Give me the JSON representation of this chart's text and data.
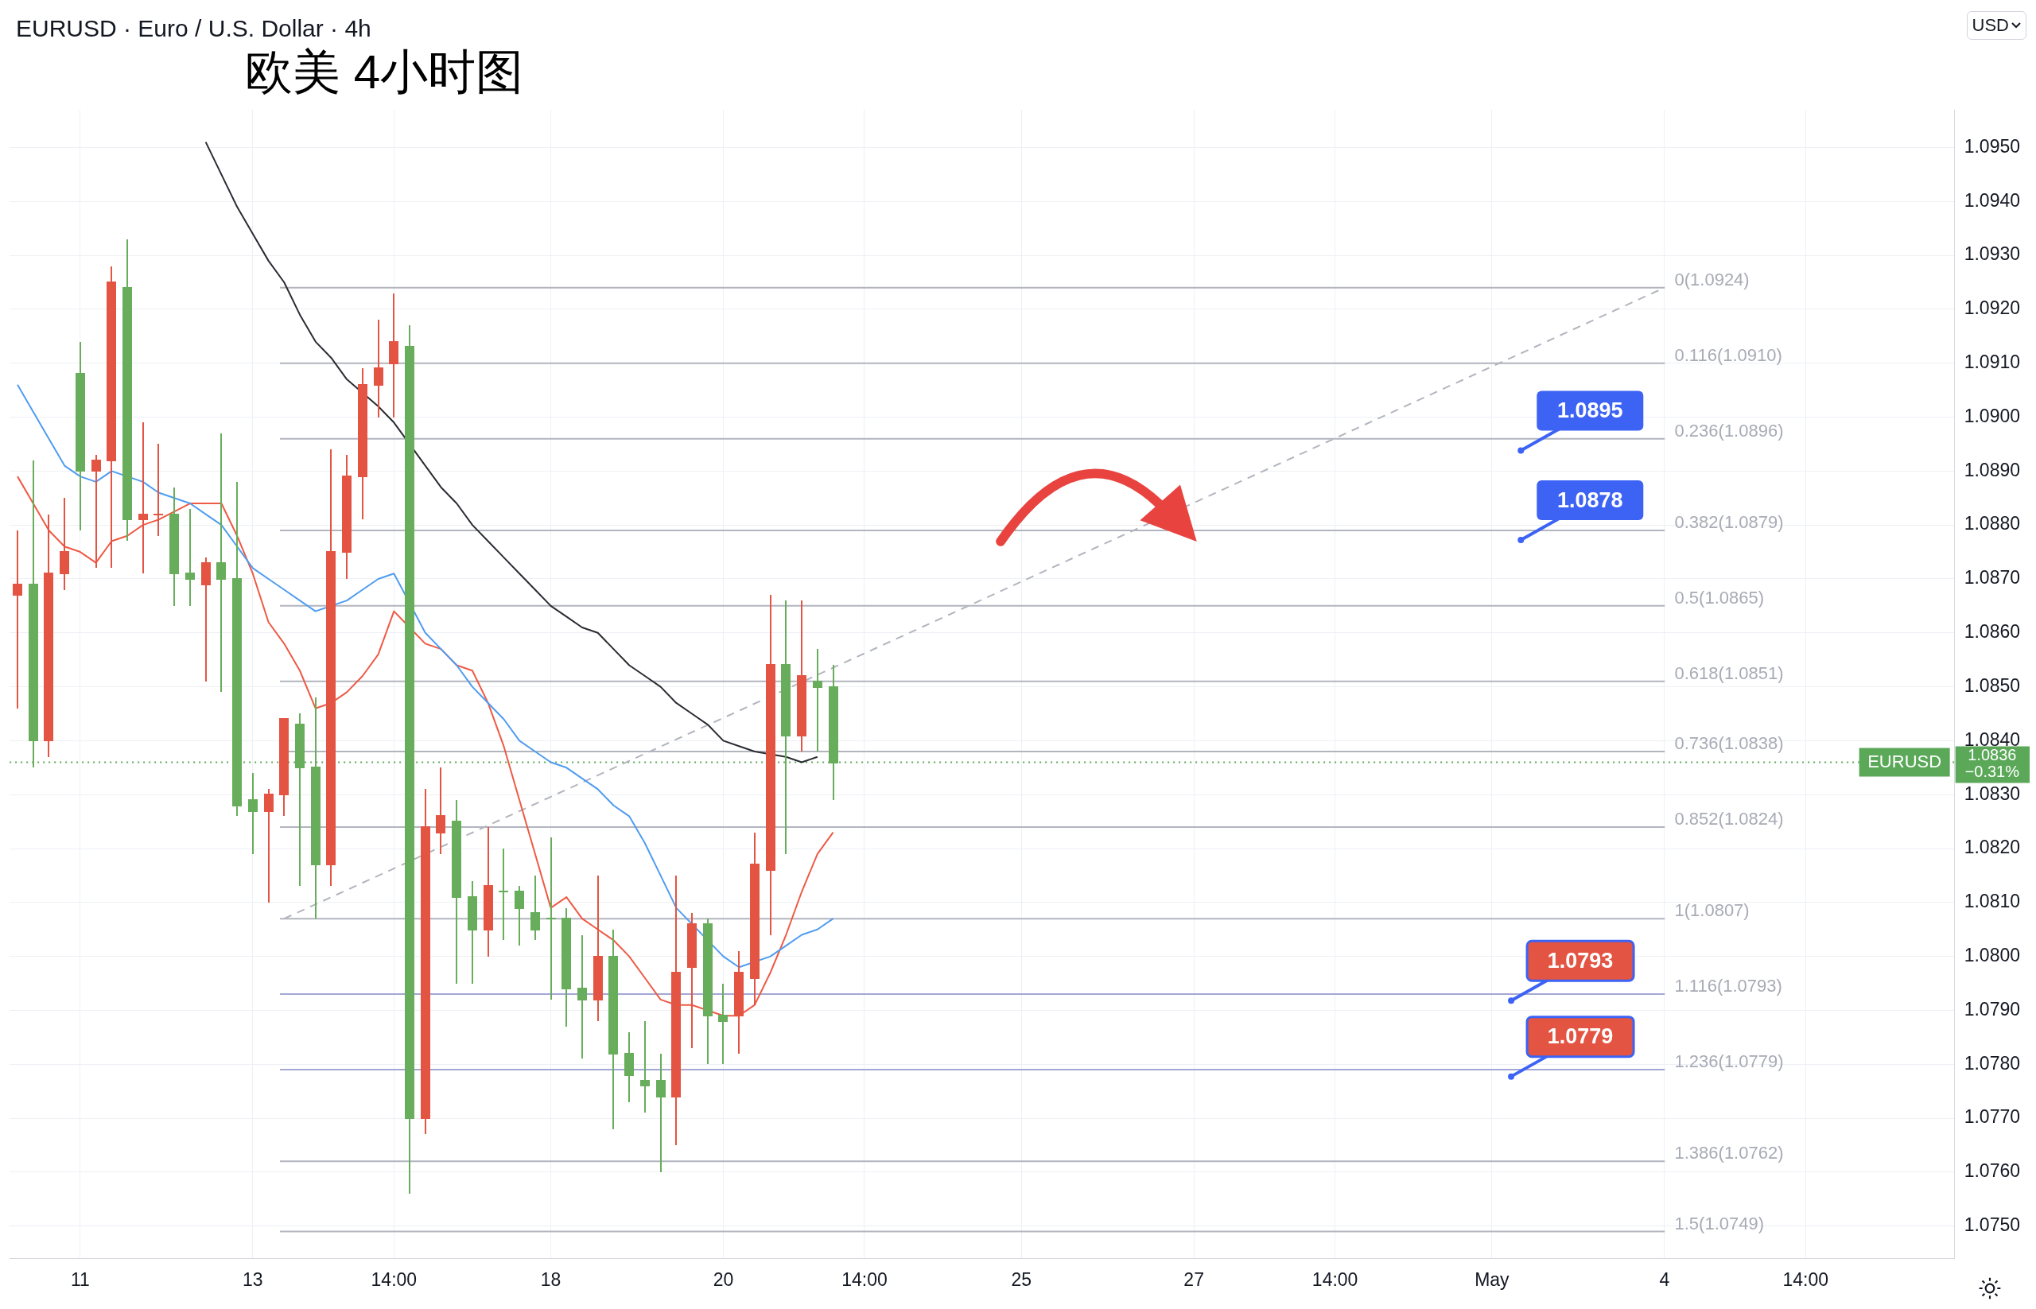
{
  "chart_data": {
    "type": "candlestick",
    "title": "EURUSD · Euro / U.S. Dollar · 4h",
    "subtitle": "欧美 4小时图",
    "categories": [
      null,
      null,
      null,
      null,
      "11",
      null,
      null,
      null,
      null,
      null,
      null,
      null,
      null,
      null,
      null,
      "13",
      null,
      null,
      null,
      null,
      null,
      null,
      null,
      null,
      "14:00",
      null,
      null,
      null,
      null,
      null,
      null,
      null,
      null,
      null,
      "18",
      null,
      null,
      null,
      null,
      null,
      null,
      null,
      null,
      null,
      null,
      "20",
      null,
      null,
      null,
      null,
      null,
      null,
      null,
      null,
      "14:00",
      null,
      null,
      null,
      null,
      null,
      null,
      null,
      null,
      null,
      "25",
      null,
      null,
      null,
      null,
      null,
      null,
      null,
      null,
      null,
      null,
      "27",
      null,
      null,
      null,
      null,
      null,
      null,
      null,
      null,
      "14:00",
      null,
      null,
      null,
      null,
      null,
      null,
      null,
      null,
      null,
      "May",
      null,
      null,
      null,
      null,
      null,
      null,
      null,
      null,
      null,
      null,
      "4",
      null,
      null,
      null,
      null,
      null,
      null,
      null,
      null,
      "14:00",
      null,
      null,
      null,
      null,
      null,
      null,
      null,
      null,
      null
    ],
    "ohlc": [
      [
        1.0869,
        1.0879,
        1.0846,
        1.0867
      ],
      [
        1.084,
        1.0892,
        1.0835,
        1.0869
      ],
      [
        1.0871,
        1.0882,
        1.0837,
        1.084
      ],
      [
        1.0875,
        1.0885,
        1.0868,
        1.0871
      ],
      [
        1.089,
        1.0914,
        1.0879,
        1.0908
      ],
      [
        1.0892,
        1.0893,
        1.0872,
        1.089
      ],
      [
        1.0925,
        1.0928,
        1.0872,
        1.0892
      ],
      [
        1.0881,
        1.0933,
        1.0877,
        1.0924
      ],
      [
        1.0882,
        1.0899,
        1.0871,
        1.0881
      ],
      [
        1.0882,
        1.0895,
        1.0878,
        1.0882
      ],
      [
        1.0871,
        1.0887,
        1.0865,
        1.0882
      ],
      [
        1.087,
        1.0883,
        1.0865,
        1.0871
      ],
      [
        1.0873,
        1.0874,
        1.0851,
        1.0869
      ],
      [
        1.087,
        1.0897,
        1.0849,
        1.0873
      ],
      [
        1.0828,
        1.0888,
        1.0826,
        1.087
      ],
      [
        1.0827,
        1.0834,
        1.0819,
        1.0829
      ],
      [
        1.083,
        1.0831,
        1.081,
        1.0827
      ],
      [
        1.0844,
        1.0844,
        1.0826,
        1.083
      ],
      [
        1.0835,
        1.0845,
        1.0813,
        1.0843
      ],
      [
        1.0817,
        1.0848,
        1.0807,
        1.0835
      ],
      [
        1.0875,
        1.0894,
        1.0813,
        1.0817
      ],
      [
        1.0889,
        1.0893,
        1.087,
        1.0875
      ],
      [
        1.0906,
        1.0909,
        1.0881,
        1.0889
      ],
      [
        1.0909,
        1.0918,
        1.09,
        1.0906
      ],
      [
        1.0914,
        1.0923,
        1.09,
        1.091
      ],
      [
        1.077,
        1.0917,
        1.0756,
        1.0913
      ],
      [
        1.0824,
        1.0831,
        1.0767,
        1.077
      ],
      [
        1.0826,
        1.0835,
        1.0819,
        1.0823
      ],
      [
        1.0811,
        1.0829,
        1.0795,
        1.0825
      ],
      [
        1.0805,
        1.0814,
        1.0795,
        1.0811
      ],
      [
        1.0813,
        1.0824,
        1.08,
        1.0805
      ],
      [
        1.0812,
        1.082,
        1.0803,
        1.0812
      ],
      [
        1.0809,
        1.0813,
        1.0802,
        1.0812
      ],
      [
        1.0805,
        1.0815,
        1.0803,
        1.0808
      ],
      [
        1.0807,
        1.0822,
        1.0792,
        1.0807
      ],
      [
        1.0794,
        1.0809,
        1.0787,
        1.0807
      ],
      [
        1.0792,
        1.0804,
        1.0781,
        1.0794
      ],
      [
        1.08,
        1.0815,
        1.0788,
        1.0792
      ],
      [
        1.0782,
        1.0805,
        1.0768,
        1.08
      ],
      [
        1.0778,
        1.0786,
        1.0773,
        1.0782
      ],
      [
        1.0776,
        1.0788,
        1.0771,
        1.0777
      ],
      [
        1.0774,
        1.0782,
        1.076,
        1.0777
      ],
      [
        1.0797,
        1.0815,
        1.0765,
        1.0774
      ],
      [
        1.0806,
        1.0808,
        1.0783,
        1.0798
      ],
      [
        1.0789,
        1.0807,
        1.078,
        1.0806
      ],
      [
        1.0788,
        1.0795,
        1.078,
        1.0789
      ],
      [
        1.0797,
        1.0801,
        1.0782,
        1.0789
      ],
      [
        1.0817,
        1.0823,
        1.0791,
        1.0796
      ],
      [
        1.0854,
        1.0867,
        1.0804,
        1.0816
      ],
      [
        1.0841,
        1.0866,
        1.0819,
        1.0854
      ],
      [
        1.0852,
        1.0866,
        1.0838,
        1.0841
      ],
      [
        1.085,
        1.0857,
        1.0838,
        1.0851
      ],
      [
        1.0836,
        1.0854,
        1.0829,
        1.085
      ],
      null,
      null,
      null,
      null,
      null,
      null,
      null,
      null,
      null,
      null,
      null,
      null,
      null,
      null,
      null,
      null,
      null,
      null,
      null,
      null,
      null,
      null,
      null,
      null,
      null,
      null,
      null,
      null,
      null,
      null,
      null,
      null,
      null,
      null,
      null,
      null,
      null,
      null,
      null,
      null,
      null,
      null,
      null,
      null,
      null,
      null,
      null,
      null,
      null,
      null,
      null,
      null,
      null,
      null,
      null,
      null,
      null,
      null,
      null,
      null,
      null,
      null,
      null,
      null,
      null,
      null,
      null,
      null,
      null,
      null,
      null
    ],
    "colors": [
      "#e35443",
      "#67ad5b",
      "#e35443",
      "#e35443",
      "#67ad5b",
      "#e35443",
      "#e35443",
      "#67ad5b",
      "#e35443",
      "#e35443",
      "#67ad5b",
      "#67ad5b",
      "#e35443",
      "#67ad5b",
      "#67ad5b",
      "#67ad5b",
      "#e35443",
      "#e35443",
      "#67ad5b",
      "#67ad5b",
      "#e35443",
      "#e35443",
      "#e35443",
      "#e35443",
      "#e35443",
      "#67ad5b",
      "#e35443",
      "#e35443",
      "#67ad5b",
      "#67ad5b",
      "#e35443",
      "#67ad5b",
      "#67ad5b",
      "#67ad5b",
      "#67ad5b",
      "#67ad5b",
      "#67ad5b",
      "#e35443",
      "#67ad5b",
      "#67ad5b",
      "#67ad5b",
      "#67ad5b",
      "#e35443",
      "#e35443",
      "#67ad5b",
      "#67ad5b",
      "#e35443",
      "#e35443",
      "#e35443",
      "#67ad5b",
      "#e35443",
      "#67ad5b",
      "#67ad5b",
      null,
      null,
      null,
      null,
      null,
      null,
      null,
      null,
      null,
      null,
      null,
      null,
      null,
      null,
      null,
      null,
      null,
      null,
      null,
      null,
      null,
      null,
      null,
      null,
      null,
      null,
      null,
      null,
      null,
      null,
      null,
      null,
      null,
      null,
      null,
      null,
      null,
      null,
      null,
      null,
      null,
      null,
      null,
      null,
      null,
      null,
      null,
      null,
      null,
      null,
      null,
      null,
      null,
      null,
      null,
      null,
      null,
      null,
      null,
      null,
      null,
      null,
      null,
      null,
      null,
      null,
      null,
      null,
      null,
      null,
      null
    ],
    "series": [
      {
        "type": "line",
        "color": "#4f9cf0",
        "values": [
          1.0906,
          1.0901,
          1.0896,
          1.0891,
          1.0889,
          1.0888,
          1.089,
          null,
          1.0888,
          1.0886,
          1.0885,
          1.0884,
          1.0882,
          1.088,
          1.0876,
          1.0872,
          1.087,
          1.0868,
          1.0866,
          1.0864,
          null,
          1.0866,
          1.0868,
          1.087,
          1.0871,
          null,
          1.086,
          1.0857,
          1.0854,
          1.085,
          1.0847,
          1.0844,
          1.084,
          1.0838,
          1.0836,
          1.0835,
          1.0833,
          1.0831,
          1.0828,
          1.0826,
          1.0821,
          1.0815,
          1.0809,
          null,
          null,
          1.08,
          1.0798,
          null,
          1.08,
          1.0802,
          1.0804,
          1.0805,
          1.0807,
          null,
          null,
          null,
          null,
          null,
          null,
          null,
          null,
          null,
          null,
          null,
          null,
          null,
          null,
          null,
          null,
          null,
          null,
          null,
          null,
          null,
          null,
          null,
          null,
          null,
          null,
          null,
          null,
          null,
          null,
          null,
          null,
          null,
          null,
          null,
          null,
          null,
          null,
          null,
          null,
          null,
          null,
          null,
          null,
          null,
          null,
          null,
          null,
          null,
          null,
          null,
          null,
          null,
          null,
          null,
          null,
          null,
          null,
          null,
          null,
          null,
          null,
          null,
          null,
          null,
          null,
          null,
          null,
          null,
          null,
          null
        ]
      },
      {
        "type": "line",
        "color": "#ee5a45",
        "values": [
          1.0889,
          1.0884,
          1.0879,
          1.0876,
          1.0875,
          1.0873,
          1.0877,
          1.0878,
          1.088,
          1.0881,
          null,
          1.0884,
          1.0884,
          1.0884,
          1.0878,
          1.0871,
          1.0862,
          1.0858,
          1.0853,
          1.0846,
          1.0847,
          1.0849,
          1.0852,
          1.0856,
          1.0864,
          null,
          1.0858,
          1.0857,
          1.0854,
          1.0853,
          1.0847,
          1.0839,
          1.0829,
          1.0819,
          1.0809,
          1.0811,
          1.0807,
          1.0805,
          1.0803,
          1.08,
          1.0796,
          1.0792,
          1.0791,
          1.0791,
          null,
          1.0789,
          1.0789,
          1.0791,
          1.0797,
          1.0804,
          1.0812,
          1.0819,
          1.0823,
          null,
          null,
          null,
          null,
          null,
          null,
          null,
          null,
          null,
          null,
          null,
          null,
          null,
          null,
          null,
          null,
          null,
          null,
          null,
          null,
          null,
          null,
          null,
          null,
          null,
          null,
          null,
          null,
          null,
          null,
          null,
          null,
          null,
          null,
          null,
          null,
          null,
          null,
          null,
          null,
          null,
          null,
          null,
          null,
          null,
          null,
          null,
          null,
          null,
          null,
          null,
          null,
          null,
          null,
          null,
          null,
          null,
          null,
          null,
          null,
          null,
          null,
          null,
          null,
          null,
          null,
          null,
          null,
          null,
          null,
          null
        ]
      },
      {
        "type": "line",
        "color": "#2b2b33",
        "values": [
          null,
          null,
          null,
          null,
          null,
          null,
          null,
          null,
          null,
          null,
          null,
          null,
          1.0951,
          1.0945,
          1.0939,
          1.0934,
          1.0929,
          1.0925,
          1.0919,
          1.0914,
          1.0911,
          1.0907,
          null,
          1.0902,
          1.0899,
          null,
          1.0891,
          1.0887,
          1.0884,
          1.088,
          1.0877,
          1.0874,
          1.0871,
          1.0868,
          1.0865,
          1.0863,
          1.0861,
          1.086,
          1.0857,
          1.0854,
          1.0852,
          1.085,
          1.0847,
          1.0845,
          1.0843,
          1.084,
          1.0839,
          1.0838,
          null,
          1.0837,
          1.0836,
          1.0837,
          null,
          null,
          null,
          null,
          null,
          null,
          null,
          null,
          null,
          null,
          null,
          null,
          null,
          null,
          null,
          null,
          null,
          null,
          null,
          null,
          null,
          null,
          null,
          null,
          null,
          null,
          null,
          null,
          null,
          null,
          null,
          null,
          null,
          null,
          null,
          null,
          null,
          null,
          null,
          null,
          null,
          null,
          null,
          null,
          null,
          null,
          null,
          null,
          null,
          null,
          null,
          null,
          null,
          null,
          null,
          null,
          null,
          null,
          null,
          null,
          null,
          null,
          null,
          null,
          null,
          null,
          null,
          null,
          null,
          null,
          null,
          null
        ]
      },
      {
        "type": "line",
        "color": "#b2b5be",
        "line_style": "dashed",
        "values": [
          null,
          null,
          null,
          null,
          null,
          null,
          null,
          null,
          null,
          null,
          null,
          null,
          null,
          null,
          null,
          null,
          null,
          1.0807,
          null,
          null,
          null,
          null,
          null,
          null,
          null,
          null,
          null,
          null,
          null,
          null,
          null,
          null,
          null,
          null,
          null,
          null,
          null,
          null,
          null,
          null,
          null,
          null,
          null,
          null,
          null,
          null,
          null,
          null,
          null,
          null,
          null,
          null,
          null,
          null,
          null,
          null,
          null,
          null,
          null,
          null,
          null,
          null,
          null,
          null,
          null,
          null,
          null,
          null,
          null,
          null,
          null,
          null,
          null,
          null,
          null,
          null,
          null,
          null,
          null,
          null,
          null,
          null,
          null,
          null,
          null,
          null,
          null,
          null,
          null,
          null,
          null,
          null,
          null,
          null,
          null,
          null,
          null,
          null,
          null,
          null,
          null,
          null,
          null,
          null,
          null,
          1.0924,
          null,
          null,
          null,
          null,
          null,
          null,
          null,
          null,
          null,
          null,
          null,
          null,
          null,
          null,
          null,
          null,
          null,
          null
        ]
      }
    ],
    "ylim": [
      1.0744,
      1.0957
    ],
    "yticks": [
      {
        "value": 1.075,
        "label": "1.0750"
      },
      {
        "value": 1.076,
        "label": "1.0760"
      },
      {
        "value": 1.077,
        "label": "1.0770"
      },
      {
        "value": 1.078,
        "label": "1.0780"
      },
      {
        "value": 1.079,
        "label": "1.0790"
      },
      {
        "value": 1.08,
        "label": "1.0800"
      },
      {
        "value": 1.081,
        "label": "1.0810"
      },
      {
        "value": 1.082,
        "label": "1.0820"
      },
      {
        "value": 1.083,
        "label": "1.0830"
      },
      {
        "value": 1.084,
        "label": "1.0840"
      },
      {
        "value": 1.085,
        "label": "1.0850"
      },
      {
        "value": 1.086,
        "label": "1.0860"
      },
      {
        "value": 1.087,
        "label": "1.0870"
      },
      {
        "value": 1.088,
        "label": "1.0880"
      },
      {
        "value": 1.089,
        "label": "1.0890"
      },
      {
        "value": 1.09,
        "label": "1.0900"
      },
      {
        "value": 1.091,
        "label": "1.0910"
      },
      {
        "value": 1.092,
        "label": "1.0920"
      },
      {
        "value": 1.093,
        "label": "1.0930"
      },
      {
        "value": 1.094,
        "label": "1.0940"
      },
      {
        "value": 1.095,
        "label": "1.0950"
      }
    ],
    "grid": true,
    "ref_lines": [
      {
        "axis": "y",
        "value": 1.0924,
        "label": "0(1.0924)",
        "color": "#b2b5be"
      },
      {
        "axis": "y",
        "value": 1.091,
        "label": "0.116(1.0910)",
        "color": "#b2b5be"
      },
      {
        "axis": "y",
        "value": 1.0896,
        "label": "0.236(1.0896)",
        "color": "#b2b5be"
      },
      {
        "axis": "y",
        "value": 1.0879,
        "label": "0.382(1.0879)",
        "color": "#b2b5be"
      },
      {
        "axis": "y",
        "value": 1.0865,
        "label": "0.5(1.0865)",
        "color": "#b2b5be"
      },
      {
        "axis": "y",
        "value": 1.0851,
        "label": "0.618(1.0851)",
        "color": "#b2b5be"
      },
      {
        "axis": "y",
        "value": 1.0838,
        "label": "0.736(1.0838)",
        "color": "#b2b5be"
      },
      {
        "axis": "y",
        "value": 1.0824,
        "label": "0.852(1.0824)",
        "color": "#b2b5be"
      },
      {
        "axis": "y",
        "value": 1.0807,
        "label": "1(1.0807)",
        "color": "#b2b5be"
      },
      {
        "axis": "y",
        "value": 1.0793,
        "label": "1.116(1.0793)",
        "color": "#a4a7d4"
      },
      {
        "axis": "y",
        "value": 1.0779,
        "label": "1.236(1.0779)",
        "color": "#a4a7d4"
      },
      {
        "axis": "y",
        "value": 1.0762,
        "label": "1.386(1.0762)",
        "color": "#b2b5be"
      },
      {
        "axis": "y",
        "value": 1.0749,
        "label": "1.5(1.0749)",
        "color": "#b2b5be"
      },
      {
        "axis": "y",
        "value": 1.0836,
        "label": "EURUSD",
        "color": "#5aa858",
        "line_style": "dotted"
      }
    ],
    "annotations": [
      "1.0836",
      "−0.31%",
      "USD",
      "1.0895",
      "1.0878",
      "1.0793",
      "1.0779"
    ]
  }
}
